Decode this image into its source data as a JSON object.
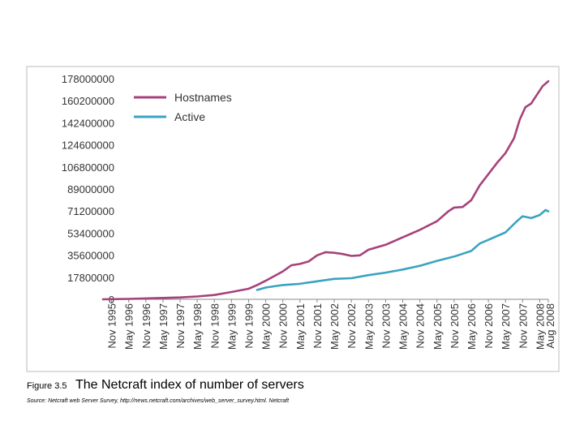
{
  "caption": {
    "figure_label": "Figure 3.5",
    "title": "The Netcraft index of number of servers",
    "source": "Source: Netcraft web Server Survey, http://news.netcraft.com/archives/web_server_survey.html. Netcraft"
  },
  "chart_data": {
    "type": "line",
    "title": "",
    "xlabel": "",
    "ylabel": "",
    "ylim": [
      0,
      178000000
    ],
    "y_ticks": [
      "0",
      "17800000",
      "35600000",
      "53400000",
      "71200000",
      "89000000",
      "106800000",
      "124600000",
      "142400000",
      "160200000",
      "178000000"
    ],
    "x_ticks": [
      "Nov 1995",
      "May 1996",
      "Nov 1996",
      "May 1997",
      "Nov 1997",
      "May 1998",
      "Nov 1998",
      "May 1999",
      "Nov 1999",
      "May 2000",
      "Nov 2000",
      "May 2001",
      "Nov 2001",
      "May 2002",
      "Nov 2002",
      "May 2003",
      "Nov 2003",
      "May 2004",
      "Nov 2004",
      "May 2005",
      "Nov 2005",
      "May 2006",
      "Nov 2006",
      "May 2007",
      "Nov 2007",
      "May 2008",
      "Aug 2008"
    ],
    "grid": false,
    "legend_position": "top-left",
    "series": [
      {
        "name": "Hostnames",
        "color": "#a6427a",
        "points": [
          [
            "Aug 1995",
            0.02
          ],
          [
            "Nov 1995",
            0.1
          ],
          [
            "May 1996",
            0.3
          ],
          [
            "Nov 1996",
            0.7
          ],
          [
            "May 1997",
            1.1
          ],
          [
            "Nov 1997",
            1.5
          ],
          [
            "May 1998",
            2.3
          ],
          [
            "Nov 1998",
            3.5
          ],
          [
            "May 1999",
            5.9
          ],
          [
            "Nov 1999",
            8.5
          ],
          [
            "Feb 2000",
            11.5
          ],
          [
            "May 2000",
            15.0
          ],
          [
            "Nov 2000",
            22.5
          ],
          [
            "Feb 2001",
            27.5
          ],
          [
            "May 2001",
            28.5
          ],
          [
            "Aug 2001",
            30.5
          ],
          [
            "Nov 2001",
            35.5
          ],
          [
            "Feb 2002",
            38.0
          ],
          [
            "May 2002",
            37.5
          ],
          [
            "Aug 2002",
            36.5
          ],
          [
            "Nov 2002",
            35.0
          ],
          [
            "Feb 2003",
            35.5
          ],
          [
            "May 2003",
            40.0
          ],
          [
            "Nov 2003",
            44.0
          ],
          [
            "May 2004",
            50.0
          ],
          [
            "Nov 2004",
            56.0
          ],
          [
            "May 2005",
            63.0
          ],
          [
            "Sep 2005",
            71.0
          ],
          [
            "Nov 2005",
            74.0
          ],
          [
            "Feb 2006",
            74.5
          ],
          [
            "May 2006",
            80.0
          ],
          [
            "Aug 2006",
            92.0
          ],
          [
            "Nov 2006",
            101.0
          ],
          [
            "Feb 2007",
            110.0
          ],
          [
            "May 2007",
            118.0
          ],
          [
            "Aug 2007",
            130.0
          ],
          [
            "Oct 2007",
            145.0
          ],
          [
            "Dec 2007",
            155.0
          ],
          [
            "Feb 2008",
            158.0
          ],
          [
            "Apr 2008",
            165.0
          ],
          [
            "Jun 2008",
            172.0
          ],
          [
            "Aug 2008",
            176.0
          ]
        ]
      },
      {
        "name": "Active",
        "color": "#3aa3c3",
        "points": [
          [
            "Feb 2000",
            7.5
          ],
          [
            "May 2000",
            9.5
          ],
          [
            "Nov 2000",
            11.5
          ],
          [
            "May 2001",
            12.5
          ],
          [
            "Nov 2001",
            14.5
          ],
          [
            "Feb 2002",
            15.5
          ],
          [
            "May 2002",
            16.5
          ],
          [
            "Nov 2002",
            17.0
          ],
          [
            "May 2003",
            19.5
          ],
          [
            "Nov 2003",
            21.5
          ],
          [
            "May 2004",
            24.0
          ],
          [
            "Nov 2004",
            27.0
          ],
          [
            "May 2005",
            31.0
          ],
          [
            "Nov 2005",
            34.5
          ],
          [
            "May 2006",
            39.0
          ],
          [
            "Aug 2006",
            45.0
          ],
          [
            "Nov 2006",
            48.0
          ],
          [
            "May 2007",
            54.0
          ],
          [
            "Sep 2007",
            63.0
          ],
          [
            "Nov 2007",
            67.0
          ],
          [
            "Feb 2008",
            65.5
          ],
          [
            "May 2008",
            68.0
          ],
          [
            "Jul 2008",
            72.0
          ],
          [
            "Aug 2008",
            71.0
          ]
        ]
      }
    ]
  }
}
